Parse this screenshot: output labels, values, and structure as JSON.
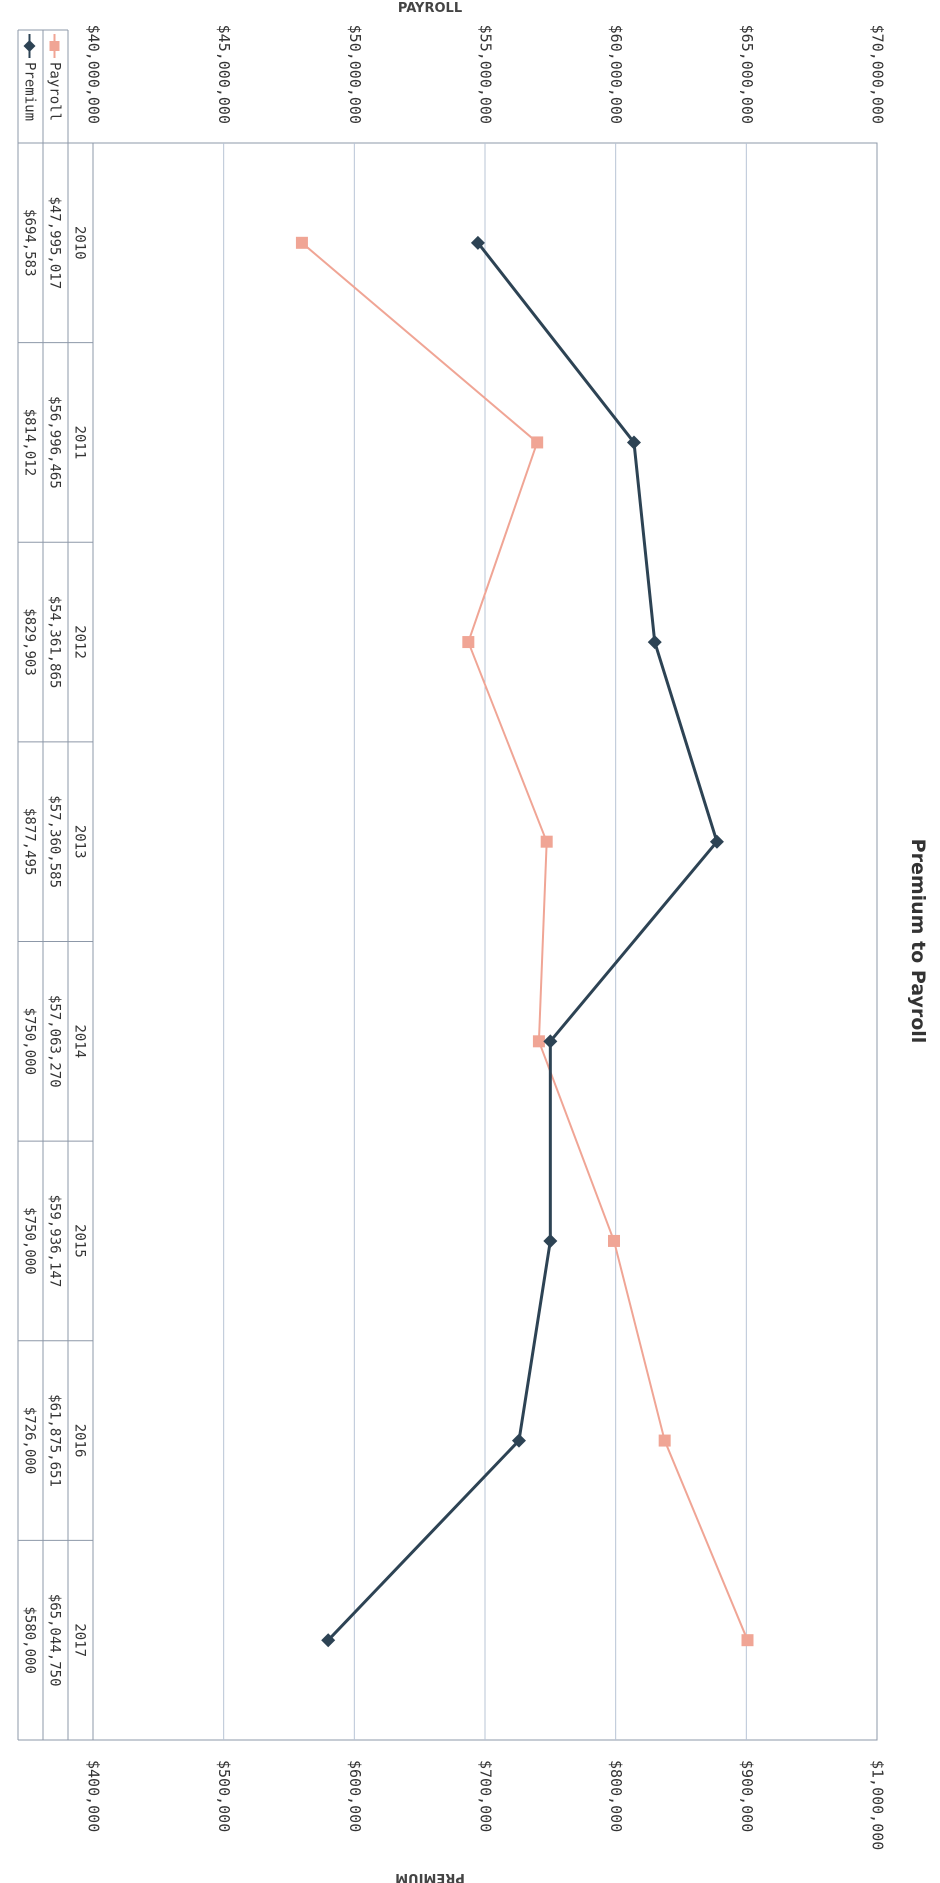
{
  "chart_data": {
    "type": "line",
    "title": "Premium to Payroll",
    "categories": [
      "2010",
      "2011",
      "2012",
      "2013",
      "2014",
      "2015",
      "2016",
      "2017"
    ],
    "left_axis": {
      "label": "PAYROLL",
      "range": [
        40000000,
        70000000
      ],
      "ticks": [
        "$40,000,000",
        "$45,000,000",
        "$50,000,000",
        "$55,000,000",
        "$60,000,000",
        "$65,000,000",
        "$70,000,000"
      ]
    },
    "right_axis": {
      "label": "PREMIUM",
      "range": [
        400000,
        1000000
      ],
      "ticks": [
        "$400,000",
        "$500,000",
        "$600,000",
        "$700,000",
        "$800,000",
        "$900,000",
        "$1,000,000"
      ]
    },
    "series": [
      {
        "name": "Payroll",
        "axis": "left",
        "color": "#f0a595",
        "marker": "square",
        "values": [
          47995017,
          56996465,
          54361865,
          57360585,
          57063270,
          59936147,
          61875651,
          65044750
        ],
        "labels": [
          "$47,995,017",
          "$56,996,465",
          "$54,361,865",
          "$57,360,585",
          "$57,063,270",
          "$59,936,147",
          "$61,875,651",
          "$65,044,750"
        ]
      },
      {
        "name": "Premium",
        "axis": "right",
        "color": "#2d4354",
        "marker": "diamond",
        "values": [
          694583,
          814012,
          829903,
          877495,
          750000,
          750000,
          726000,
          580000
        ],
        "labels": [
          "$694,583",
          "$814,012",
          "$829,903",
          "$877,495",
          "$750,000",
          "$750,000",
          "$726,000",
          "$580,000"
        ]
      }
    ],
    "grid": true,
    "legend": "data-table"
  }
}
